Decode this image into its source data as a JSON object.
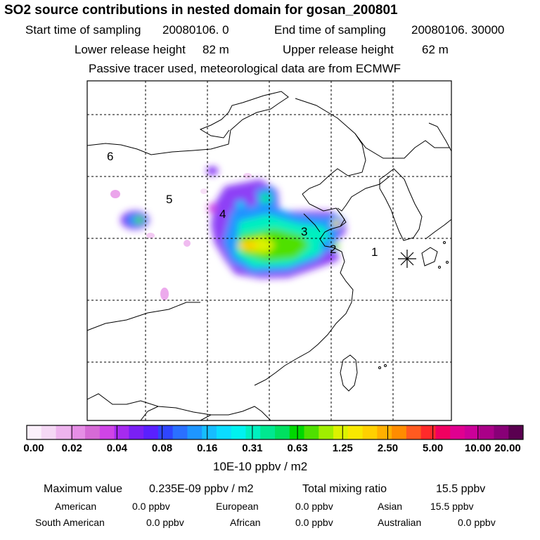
{
  "header": {
    "title": "SO2 source contributions in nested domain for gosan_200801",
    "start_label": "Start time of sampling",
    "start_value": "20080106.    0",
    "end_label": "End time of sampling",
    "end_value": "20080106. 30000",
    "lower_label": "Lower release height",
    "lower_value": "82 m",
    "upper_label": "Upper release height",
    "upper_value": "62 m",
    "note": "Passive tracer used, meteorological data are from ECMWF"
  },
  "map": {
    "region_labels": [
      {
        "id": "1",
        "text": "1"
      },
      {
        "id": "2",
        "text": "2"
      },
      {
        "id": "3",
        "text": "3"
      },
      {
        "id": "4",
        "text": "4"
      },
      {
        "id": "5",
        "text": "5"
      },
      {
        "id": "6",
        "text": "6"
      }
    ],
    "receptor_marker": "asterisk-marker-icon"
  },
  "colorbar": {
    "colors": [
      "#fbf0fb",
      "#f5d8f5",
      "#eeb4ee",
      "#e68ee6",
      "#d66ad6",
      "#cf44e6",
      "#a62bf0",
      "#7a20f5",
      "#5a20ff",
      "#2f45ff",
      "#2a70ff",
      "#1e96ff",
      "#16bdff",
      "#0bdcff",
      "#00f2f0",
      "#00f0c0",
      "#00e890",
      "#00e060",
      "#00d800",
      "#4fe000",
      "#a0ee00",
      "#dcf200",
      "#f8e800",
      "#ffd000",
      "#ffb000",
      "#ff8c00",
      "#ff5a20",
      "#ff2a2a",
      "#f00060",
      "#e00090",
      "#cc0099",
      "#aa0088",
      "#880077",
      "#5a0050"
    ],
    "labels": [
      "0.00",
      "0.02",
      "0.04",
      "0.08",
      "0.16",
      "0.31",
      "0.63",
      "1.25",
      "2.50",
      "5.00",
      "10.00",
      "20.00"
    ],
    "units": "10E-10 ppbv / m2"
  },
  "footer": {
    "max_label": "Maximum value",
    "max_value": "0.235E-09 ppbv / m2",
    "total_label": "Total mixing ratio",
    "total_value": "15.5 ppbv",
    "contributions": [
      {
        "region": "American",
        "value": "0.0 ppbv"
      },
      {
        "region": "European",
        "value": "0.0 ppbv"
      },
      {
        "region": "Asian",
        "value": "15.5 ppbv"
      },
      {
        "region": "South American",
        "value": "0.0 ppbv"
      },
      {
        "region": "African",
        "value": "0.0 ppbv"
      },
      {
        "region": "Australian",
        "value": "0.0 ppbv"
      }
    ]
  }
}
